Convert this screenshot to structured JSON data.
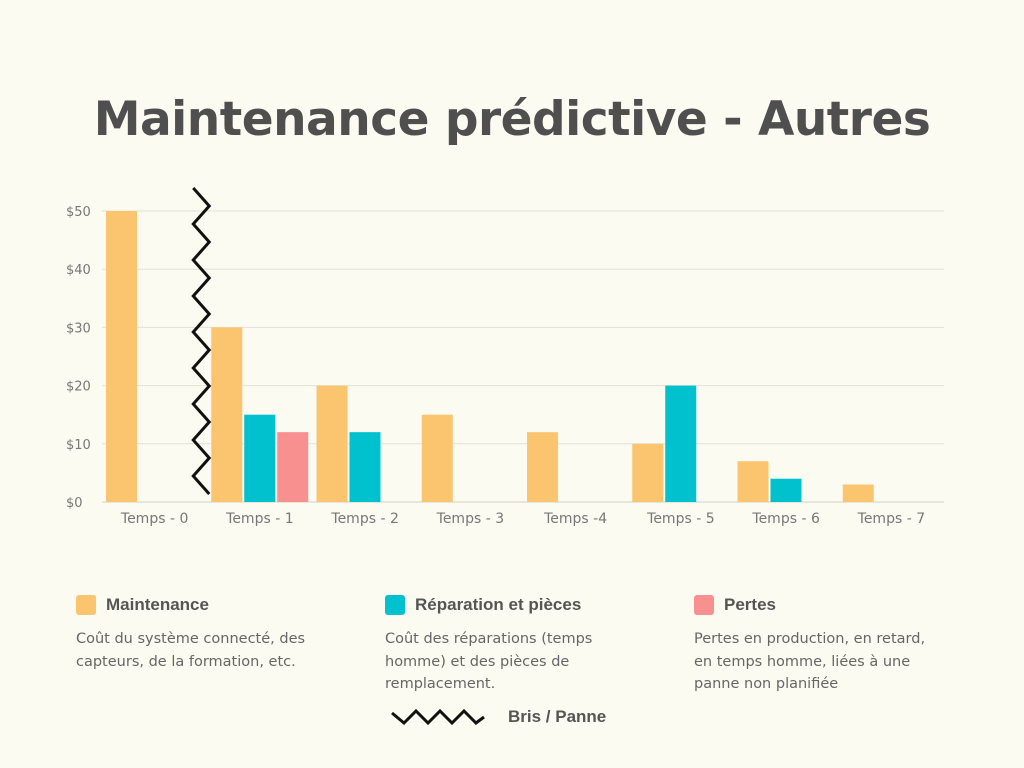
{
  "title": "Maintenance prédictive - Autres",
  "chart_data": {
    "type": "bar",
    "categories": [
      "Temps - 0",
      "Temps - 1",
      "Temps - 2",
      "Temps - 3",
      "Temps -4",
      "Temps - 5",
      "Temps - 6",
      "Temps - 7"
    ],
    "series": [
      {
        "name": "Maintenance",
        "color": "#fbc46e",
        "values": [
          50,
          30,
          20,
          15,
          12,
          10,
          7,
          3
        ]
      },
      {
        "name": "Réparation et pièces",
        "color": "#00c1cd",
        "values": [
          0,
          15,
          12,
          0,
          0,
          20,
          4,
          0
        ]
      },
      {
        "name": "Pertes",
        "color": "#f99090",
        "values": [
          0,
          12,
          0,
          0,
          0,
          0,
          0,
          0
        ]
      }
    ],
    "yticks": [
      "$0",
      "$10",
      "$20",
      "$30",
      "$40",
      "$50"
    ],
    "ylim": [
      0,
      50
    ],
    "grid": true,
    "legend_position": "bottom",
    "annotation": "Bris / Panne",
    "annotation_category": "Temps - 0"
  },
  "legend": [
    {
      "name": "Maintenance",
      "color": "#fbc46e",
      "description": "Coût du système connecté, des capteurs, de la formation, etc."
    },
    {
      "name": "Réparation et pièces",
      "color": "#00c1cd",
      "description": "Coût des réparations (temps homme) et des pièces de remplacement."
    },
    {
      "name": "Pertes",
      "color": "#f99090",
      "description": "Pertes en production, en retard, en temps homme, liées à une panne non planifiée"
    }
  ],
  "bris_label": "Bris / Panne"
}
